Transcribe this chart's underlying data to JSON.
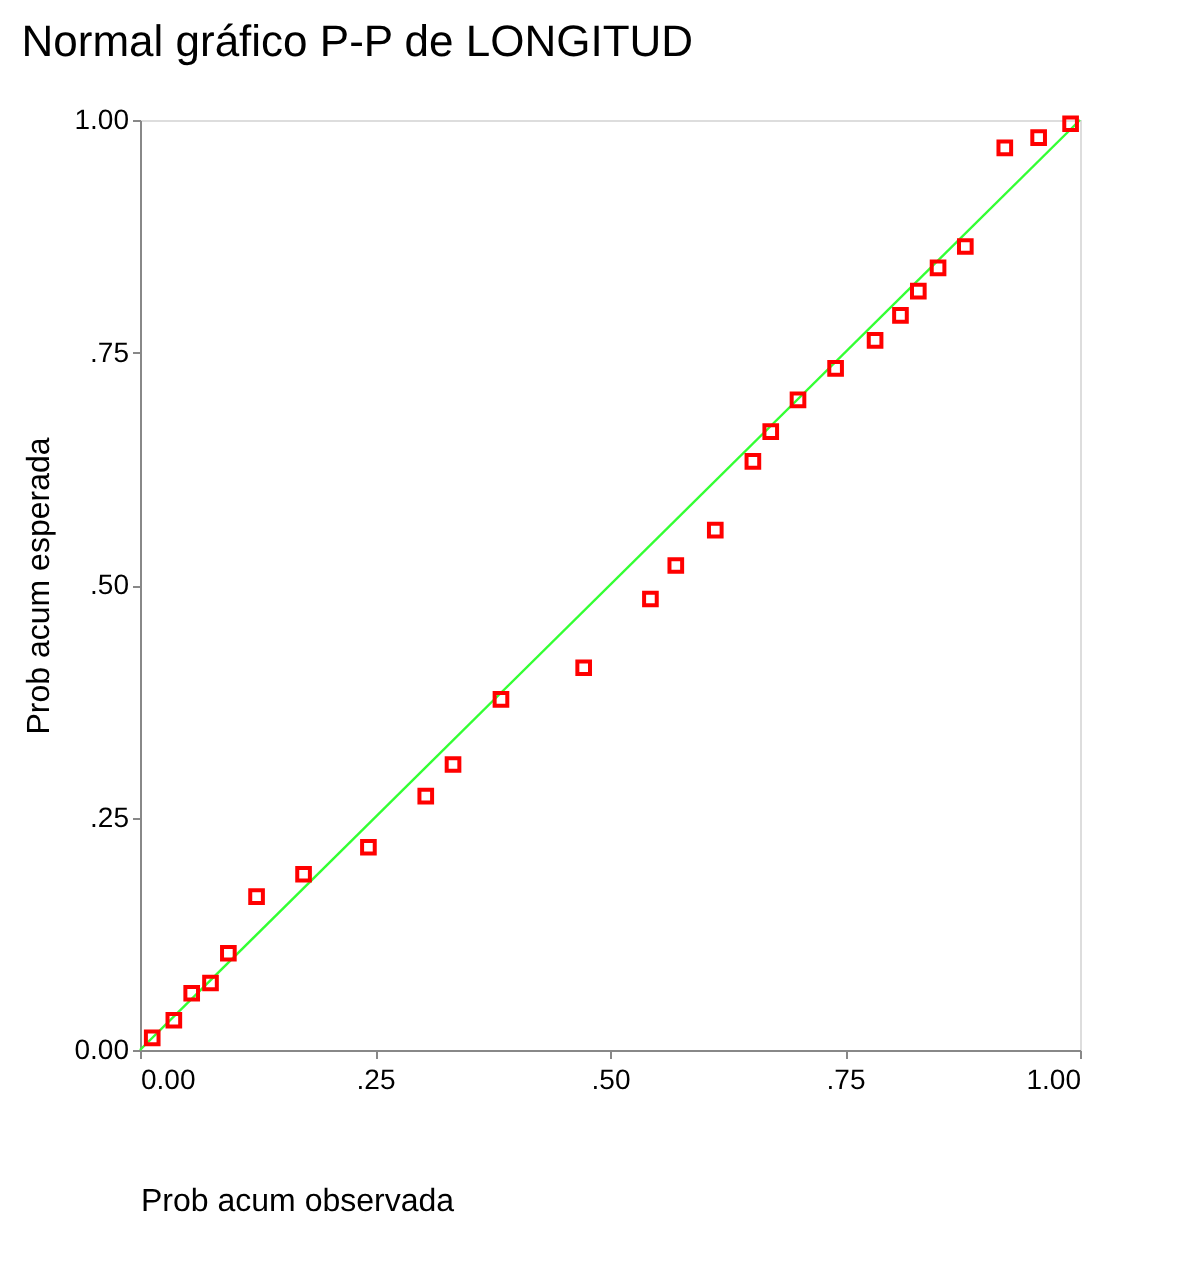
{
  "chart_data": {
    "type": "scatter",
    "title": "Normal gráfico P-P de LONGITUD",
    "xlabel": "Prob acum observada",
    "ylabel": "Prob acum esperada",
    "xlim": [
      0,
      1
    ],
    "ylim": [
      0,
      1
    ],
    "xticks": [
      {
        "value": 0,
        "label": "0.00"
      },
      {
        "value": 0.25,
        "label": ".25"
      },
      {
        "value": 0.5,
        "label": ".50"
      },
      {
        "value": 0.75,
        "label": ".75"
      },
      {
        "value": 1,
        "label": "1.00"
      }
    ],
    "yticks": [
      {
        "value": 0,
        "label": "0.00"
      },
      {
        "value": 0.25,
        "label": ".25"
      },
      {
        "value": 0.5,
        "label": ".50"
      },
      {
        "value": 0.75,
        "label": ".75"
      },
      {
        "value": 1,
        "label": "1.00"
      }
    ],
    "grid": false,
    "series": [
      {
        "type": "line",
        "color": "#33ff33",
        "x": [
          0,
          1
        ],
        "values": [
          0,
          1
        ],
        "marker": "none",
        "line_style": "solid"
      },
      {
        "color": "#ff0000",
        "marker": "square",
        "x": [
          0.013,
          0.036,
          0.055,
          0.075,
          0.094,
          0.124,
          0.174,
          0.243,
          0.304,
          0.333,
          0.384,
          0.472,
          0.543,
          0.57,
          0.612,
          0.652,
          0.671,
          0.7,
          0.74,
          0.782,
          0.809,
          0.828,
          0.849,
          0.878,
          0.92,
          0.956,
          0.99
        ],
        "values": [
          0.013,
          0.032,
          0.061,
          0.072,
          0.104,
          0.165,
          0.189,
          0.218,
          0.273,
          0.307,
          0.377,
          0.411,
          0.485,
          0.521,
          0.559,
          0.633,
          0.665,
          0.699,
          0.733,
          0.763,
          0.79,
          0.816,
          0.841,
          0.864,
          0.97,
          0.981,
          0.996
        ]
      }
    ]
  }
}
